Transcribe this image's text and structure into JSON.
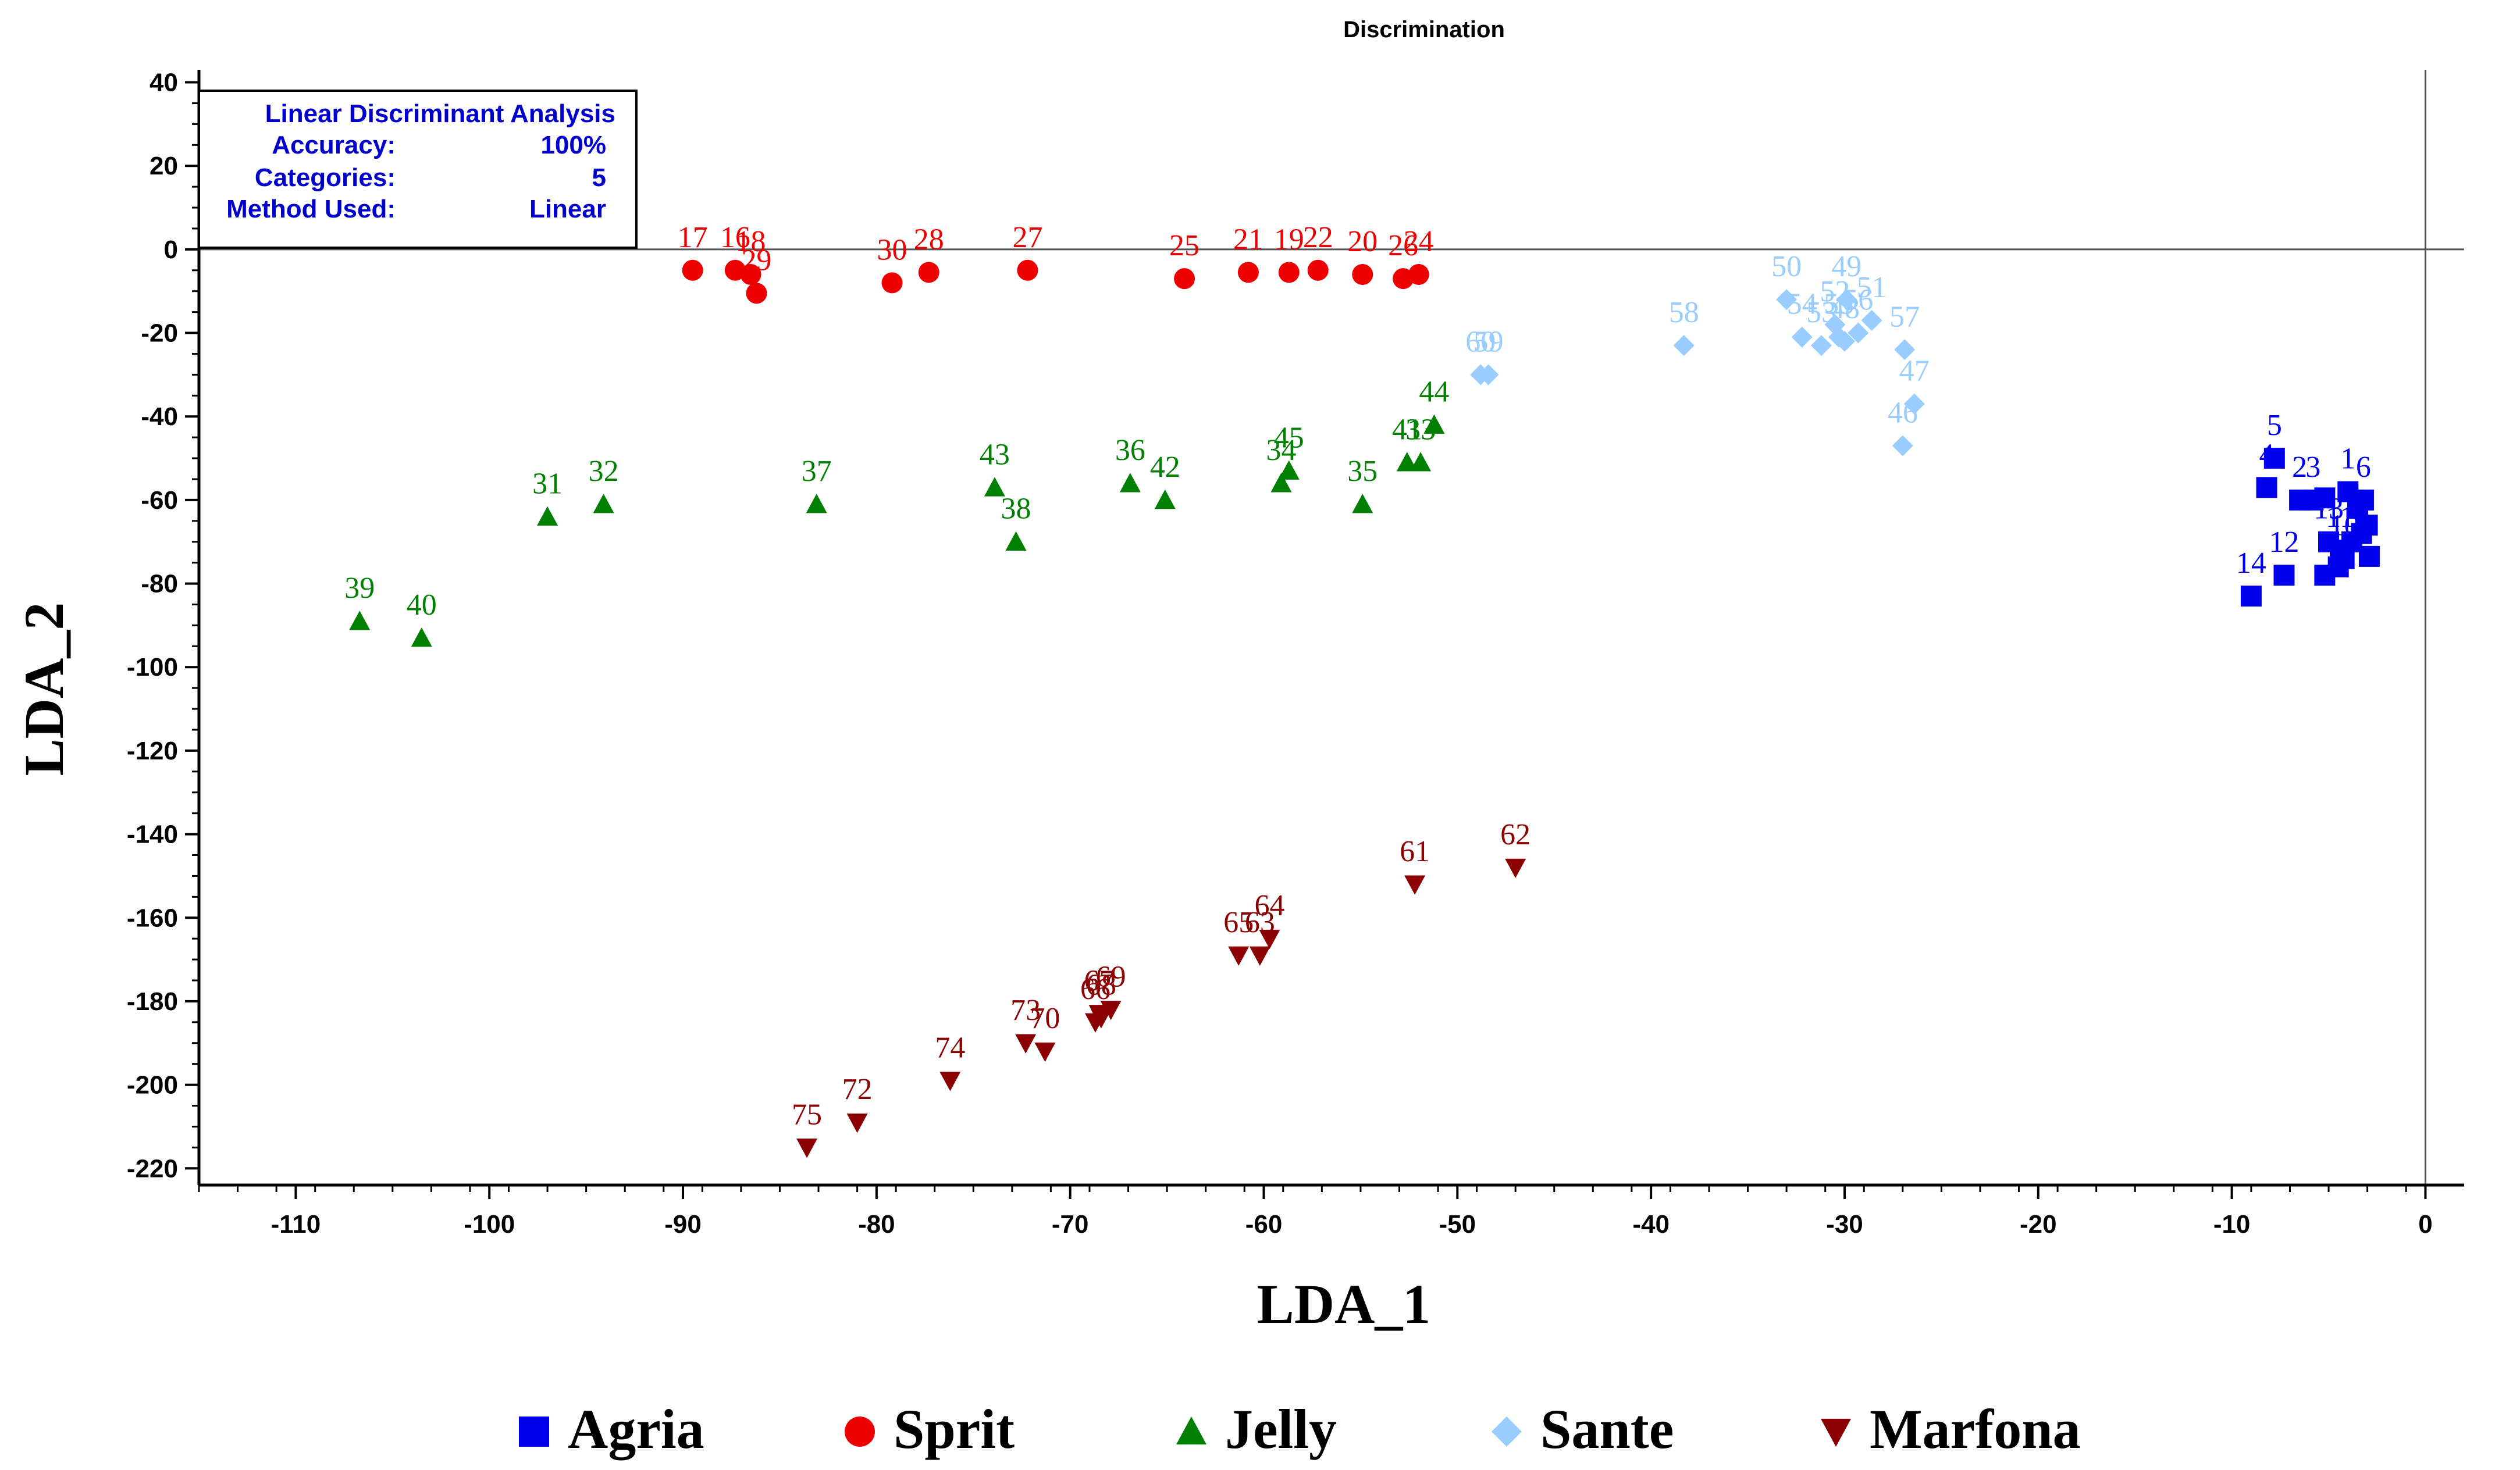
{
  "chart_data": {
    "type": "scatter",
    "title": "Discrimination",
    "xlabel": "LDA_1",
    "ylabel": "LDA_2",
    "xlim": [
      -115,
      2
    ],
    "ylim": [
      -224,
      43
    ],
    "xticks": [
      -110,
      -100,
      -90,
      -80,
      -70,
      -60,
      -50,
      -40,
      -30,
      -20,
      -10,
      0
    ],
    "yticks": [
      40,
      20,
      0,
      -20,
      -40,
      -60,
      -80,
      -100,
      -120,
      -140,
      -160,
      -180,
      -200,
      -220
    ],
    "info_box": {
      "header": "Linear Discriminant Analysis",
      "rows": [
        {
          "label": "Accuracy:",
          "value": "100%"
        },
        {
          "label": "Categories:",
          "value": "5"
        },
        {
          "label": "Method Used:",
          "value": "Linear"
        }
      ]
    },
    "series": [
      {
        "name": "Agria",
        "marker": "square",
        "color": "#0000ee",
        "points": [
          {
            "id": "5",
            "x": -7.8,
            "y": -50
          },
          {
            "id": "4",
            "x": -8.2,
            "y": -57
          },
          {
            "id": "2",
            "x": -6.5,
            "y": -60
          },
          {
            "id": "3",
            "x": -5.8,
            "y": -60
          },
          {
            "id": "",
            "x": -5.2,
            "y": -59.5
          },
          {
            "id": "1",
            "x": -4,
            "y": -58
          },
          {
            "id": "6",
            "x": -3.2,
            "y": -60
          },
          {
            "id": "",
            "x": -3.5,
            "y": -62
          },
          {
            "id": "",
            "x": -3,
            "y": -66
          },
          {
            "id": "",
            "x": -3.3,
            "y": -68
          },
          {
            "id": "",
            "x": -3.8,
            "y": -70
          },
          {
            "id": "11",
            "x": -4.4,
            "y": -72
          },
          {
            "id": "13",
            "x": -5,
            "y": -70
          },
          {
            "id": "10",
            "x": -4.2,
            "y": -74
          },
          {
            "id": "",
            "x": -2.9,
            "y": -73.5
          },
          {
            "id": "",
            "x": -4.5,
            "y": -76
          },
          {
            "id": "",
            "x": -5.2,
            "y": -78
          },
          {
            "id": "12",
            "x": -7.3,
            "y": -78
          },
          {
            "id": "14",
            "x": -9,
            "y": -83
          }
        ]
      },
      {
        "name": "Sprit",
        "marker": "circle",
        "color": "#ee0000",
        "points": [
          {
            "id": "17",
            "x": -89.5,
            "y": -5
          },
          {
            "id": "16",
            "x": -87.3,
            "y": -5
          },
          {
            "id": "18",
            "x": -86.5,
            "y": -6
          },
          {
            "id": "29",
            "x": -86.2,
            "y": -10.5
          },
          {
            "id": "30",
            "x": -79.2,
            "y": -8
          },
          {
            "id": "28",
            "x": -77.3,
            "y": -5.5
          },
          {
            "id": "27",
            "x": -72.2,
            "y": -5
          },
          {
            "id": "25",
            "x": -64.1,
            "y": -7
          },
          {
            "id": "21",
            "x": -60.8,
            "y": -5.5
          },
          {
            "id": "19",
            "x": -58.7,
            "y": -5.5
          },
          {
            "id": "22",
            "x": -57.2,
            "y": -5
          },
          {
            "id": "20",
            "x": -54.9,
            "y": -6
          },
          {
            "id": "26",
            "x": -52.8,
            "y": -7
          },
          {
            "id": "24",
            "x": -52,
            "y": -6
          }
        ]
      },
      {
        "name": "Jelly",
        "marker": "triangle-up",
        "color": "#008000",
        "points": [
          {
            "id": "39",
            "x": -106.7,
            "y": -89
          },
          {
            "id": "40",
            "x": -103.5,
            "y": -93
          },
          {
            "id": "31",
            "x": -97,
            "y": -64
          },
          {
            "id": "32",
            "x": -94.1,
            "y": -61
          },
          {
            "id": "37",
            "x": -83.1,
            "y": -61
          },
          {
            "id": "43",
            "x": -73.9,
            "y": -57
          },
          {
            "id": "38",
            "x": -72.8,
            "y": -70
          },
          {
            "id": "36",
            "x": -66.9,
            "y": -56
          },
          {
            "id": "42",
            "x": -65.1,
            "y": -60
          },
          {
            "id": "34",
            "x": -59.1,
            "y": -56
          },
          {
            "id": "45",
            "x": -58.7,
            "y": -53
          },
          {
            "id": "35",
            "x": -54.9,
            "y": -61
          },
          {
            "id": "41",
            "x": -52.6,
            "y": -51
          },
          {
            "id": "33",
            "x": -51.9,
            "y": -51
          },
          {
            "id": "44",
            "x": -51.2,
            "y": -42
          }
        ]
      },
      {
        "name": "Sante",
        "marker": "diamond",
        "color": "#99ccff",
        "points": [
          {
            "id": "59",
            "x": -48.4,
            "y": -30
          },
          {
            "id": "60",
            "x": -48.8,
            "y": -30
          },
          {
            "id": "58",
            "x": -38.3,
            "y": -23
          },
          {
            "id": "50",
            "x": -33,
            "y": -12
          },
          {
            "id": "54",
            "x": -32.2,
            "y": -21
          },
          {
            "id": "53",
            "x": -31.2,
            "y": -23
          },
          {
            "id": "52",
            "x": -30.5,
            "y": -18
          },
          {
            "id": "48",
            "x": -30,
            "y": -22
          },
          {
            "id": "49",
            "x": -29.9,
            "y": -12
          },
          {
            "id": "56",
            "x": -29.3,
            "y": -20
          },
          {
            "id": "55",
            "x": -30.3,
            "y": -21
          },
          {
            "id": "51",
            "x": -28.6,
            "y": -17
          },
          {
            "id": "57",
            "x": -26.9,
            "y": -24
          },
          {
            "id": "47",
            "x": -26.4,
            "y": -37
          },
          {
            "id": "46",
            "x": -27,
            "y": -47
          }
        ]
      },
      {
        "name": "Marfona",
        "marker": "triangle-down",
        "color": "#8b0000",
        "points": [
          {
            "id": "62",
            "x": -47,
            "y": -148
          },
          {
            "id": "61",
            "x": -52.2,
            "y": -152
          },
          {
            "id": "64",
            "x": -59.7,
            "y": -165
          },
          {
            "id": "63",
            "x": -60.2,
            "y": -169
          },
          {
            "id": "65",
            "x": -61.3,
            "y": -169
          },
          {
            "id": "69",
            "x": -67.9,
            "y": -182
          },
          {
            "id": "67",
            "x": -68.5,
            "y": -183
          },
          {
            "id": "66",
            "x": -68.7,
            "y": -185
          },
          {
            "id": "68",
            "x": -68.4,
            "y": -184
          },
          {
            "id": "70",
            "x": -71.3,
            "y": -192
          },
          {
            "id": "73",
            "x": -72.3,
            "y": -190
          },
          {
            "id": "74",
            "x": -76.2,
            "y": -199
          },
          {
            "id": "72",
            "x": -81,
            "y": -209
          },
          {
            "id": "75",
            "x": -83.6,
            "y": -215
          }
        ]
      }
    ]
  }
}
